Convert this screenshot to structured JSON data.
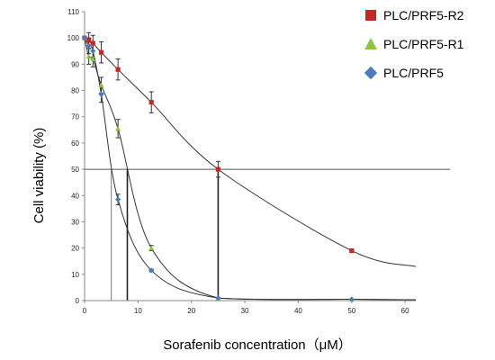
{
  "chart_data": {
    "type": "line",
    "xlabel": "Sorafenib concentration（μM）",
    "ylabel": "Cell viability (%)",
    "xlim": [
      0,
      62
    ],
    "ylim": [
      0,
      110
    ],
    "x_ticks": [
      0,
      10,
      20,
      30,
      40,
      50,
      60
    ],
    "y_ticks": [
      0,
      10,
      20,
      30,
      40,
      50,
      60,
      70,
      80,
      90,
      100,
      110
    ],
    "grid": false,
    "legend_position": "top-right",
    "reference_line_y": 50,
    "series": [
      {
        "name": "PLC/PRF5-R2",
        "marker": "square",
        "color": "#c0292a",
        "points": [
          {
            "x": 0,
            "y": 100,
            "err": 0
          },
          {
            "x": 0.78,
            "y": 99,
            "err": 3
          },
          {
            "x": 1.56,
            "y": 98,
            "err": 3
          },
          {
            "x": 3.125,
            "y": 94.5,
            "err": 4
          },
          {
            "x": 6.25,
            "y": 88,
            "err": 4
          },
          {
            "x": 12.5,
            "y": 75.5,
            "err": 4
          },
          {
            "x": 25,
            "y": 50,
            "err": 3
          },
          {
            "x": 50,
            "y": 19,
            "err": 0.5
          }
        ],
        "ic50": 25
      },
      {
        "name": "PLC/PRF5-R1",
        "marker": "triangle",
        "color": "#8cc63f",
        "points": [
          {
            "x": 0,
            "y": 100,
            "err": 0
          },
          {
            "x": 0.78,
            "y": 93,
            "err": 3
          },
          {
            "x": 1.56,
            "y": 92,
            "err": 3
          },
          {
            "x": 3.125,
            "y": 82,
            "err": 3
          },
          {
            "x": 6.25,
            "y": 65.5,
            "err": 3.5
          },
          {
            "x": 12.5,
            "y": 20,
            "err": 1
          },
          {
            "x": 25,
            "y": 1,
            "err": 0
          },
          {
            "x": 50,
            "y": 0.5,
            "err": 0
          }
        ],
        "ic50": 8
      },
      {
        "name": "PLC/PRF5",
        "marker": "diamond",
        "color": "#4a7cc2",
        "points": [
          {
            "x": 0,
            "y": 100,
            "err": 0
          },
          {
            "x": 0.78,
            "y": 97,
            "err": 3
          },
          {
            "x": 1.56,
            "y": 95,
            "err": 3
          },
          {
            "x": 3.125,
            "y": 78.5,
            "err": 3
          },
          {
            "x": 6.25,
            "y": 38.5,
            "err": 2
          },
          {
            "x": 12.5,
            "y": 11.5,
            "err": 0.5
          },
          {
            "x": 25,
            "y": 1,
            "err": 0
          },
          {
            "x": 50,
            "y": 0.5,
            "err": 0
          }
        ],
        "ic50": 5
      }
    ]
  }
}
